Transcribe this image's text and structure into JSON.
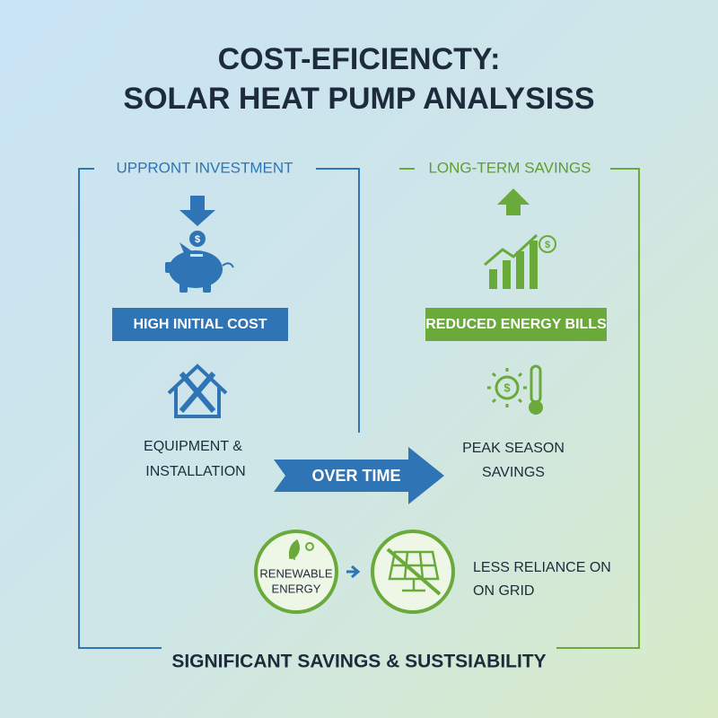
{
  "title": {
    "line1": "COST-EFICIENCTY:",
    "line2": "SOLAR HEAT PUMP ANALYSISS"
  },
  "left": {
    "heading": "UPPRONT INVESTMENT",
    "label": "HIGH INITIAL COST",
    "caption": [
      "EQUIPMENT &",
      "INSTALLATION"
    ]
  },
  "right": {
    "heading": "LONG-TERM SAVINGS",
    "label": "REDUCED ENERGY BILLS",
    "caption": [
      "PEAK SEASON",
      "SAVINGS"
    ]
  },
  "arrow": {
    "label": "OVER TIME"
  },
  "bottom": {
    "renewable": [
      "RENEWABLE",
      "ENERGY"
    ],
    "reliance": [
      "LESS RELIANCE ON",
      "ON GRID"
    ]
  },
  "footer": "SIGNIFICANT SAVINGS & SUSTSIABILITY"
}
